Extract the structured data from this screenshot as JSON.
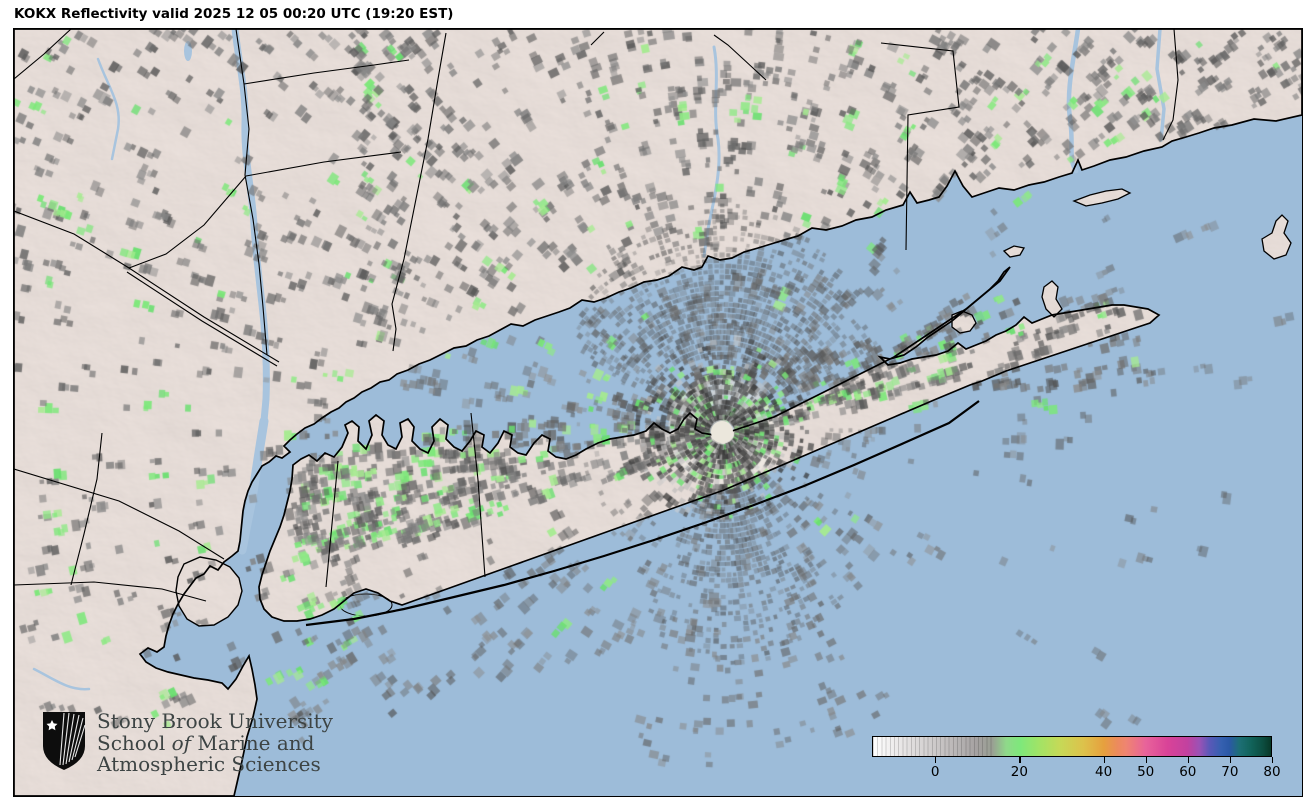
{
  "title": "KOKX Reflectivity valid 2025 12 05 00:20 UTC (19:20 EST)",
  "branding": {
    "line1": "Stony Brook University",
    "line2_pre": "School ",
    "line2_italic": "of",
    "line2_post": " Marine and",
    "line3": "Atmospheric Sciences"
  },
  "colorbar": {
    "tick_labels": [
      "0",
      "20",
      "40",
      "50",
      "60",
      "70",
      "80"
    ],
    "scale_min": -15,
    "scale_max": 80
  },
  "map": {
    "radar_site": "KOKX",
    "colors": {
      "water": "#9dbcd9",
      "land": "#ece4e0",
      "coastline": "#000000",
      "river": "#a8c4de",
      "clutter_grays": [
        80,
        150
      ],
      "clutter_greens": [
        "#7be878",
        "#8fe986",
        "#a5eb8f",
        "#69df6f"
      ],
      "radar_marker": "#ebe7dc"
    }
  }
}
